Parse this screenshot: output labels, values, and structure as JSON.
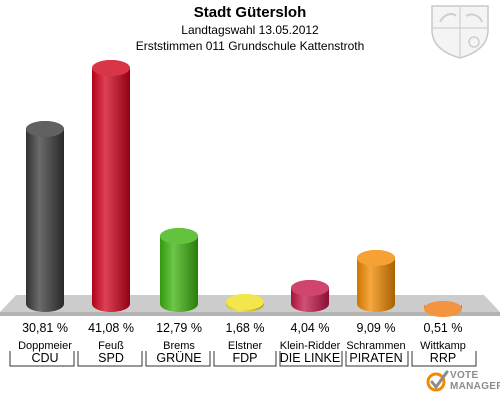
{
  "header": {
    "title": "Stadt Gütersloh",
    "subtitle": "Landtagswahl 13.05.2012",
    "subtitle2": "Erststimmen 011 Grundschule Kattenstroth"
  },
  "chart_data": {
    "type": "bar",
    "categories": [
      "CDU",
      "SPD",
      "GRÜNE",
      "FDP",
      "DIE LINKE",
      "PIRATEN",
      "RRP"
    ],
    "candidates": [
      "Doppmeier",
      "Feuß",
      "Brems",
      "Elstner",
      "Klein-Ridder",
      "Schrammen",
      "Wittkamp"
    ],
    "values": [
      30.81,
      41.08,
      12.79,
      1.68,
      4.04,
      9.09,
      0.51
    ],
    "value_labels": [
      "30,81 %",
      "41,08 %",
      "12,79 %",
      "1,68 %",
      "4,04 %",
      "9,09 %",
      "0,51 %"
    ],
    "colors": [
      "#3a3a3a",
      "#d0021b",
      "#3cb30e",
      "#f0e020",
      "#c41648",
      "#f28a00",
      "#f07a10"
    ],
    "ylim": [
      0,
      41.08
    ],
    "grid": false
  },
  "watermark": {
    "line1": "VOTE",
    "line2": "MANAGER"
  },
  "icons": {
    "crest": "coat-of-arms-icon",
    "logo": "vote-manager-logo-icon"
  }
}
